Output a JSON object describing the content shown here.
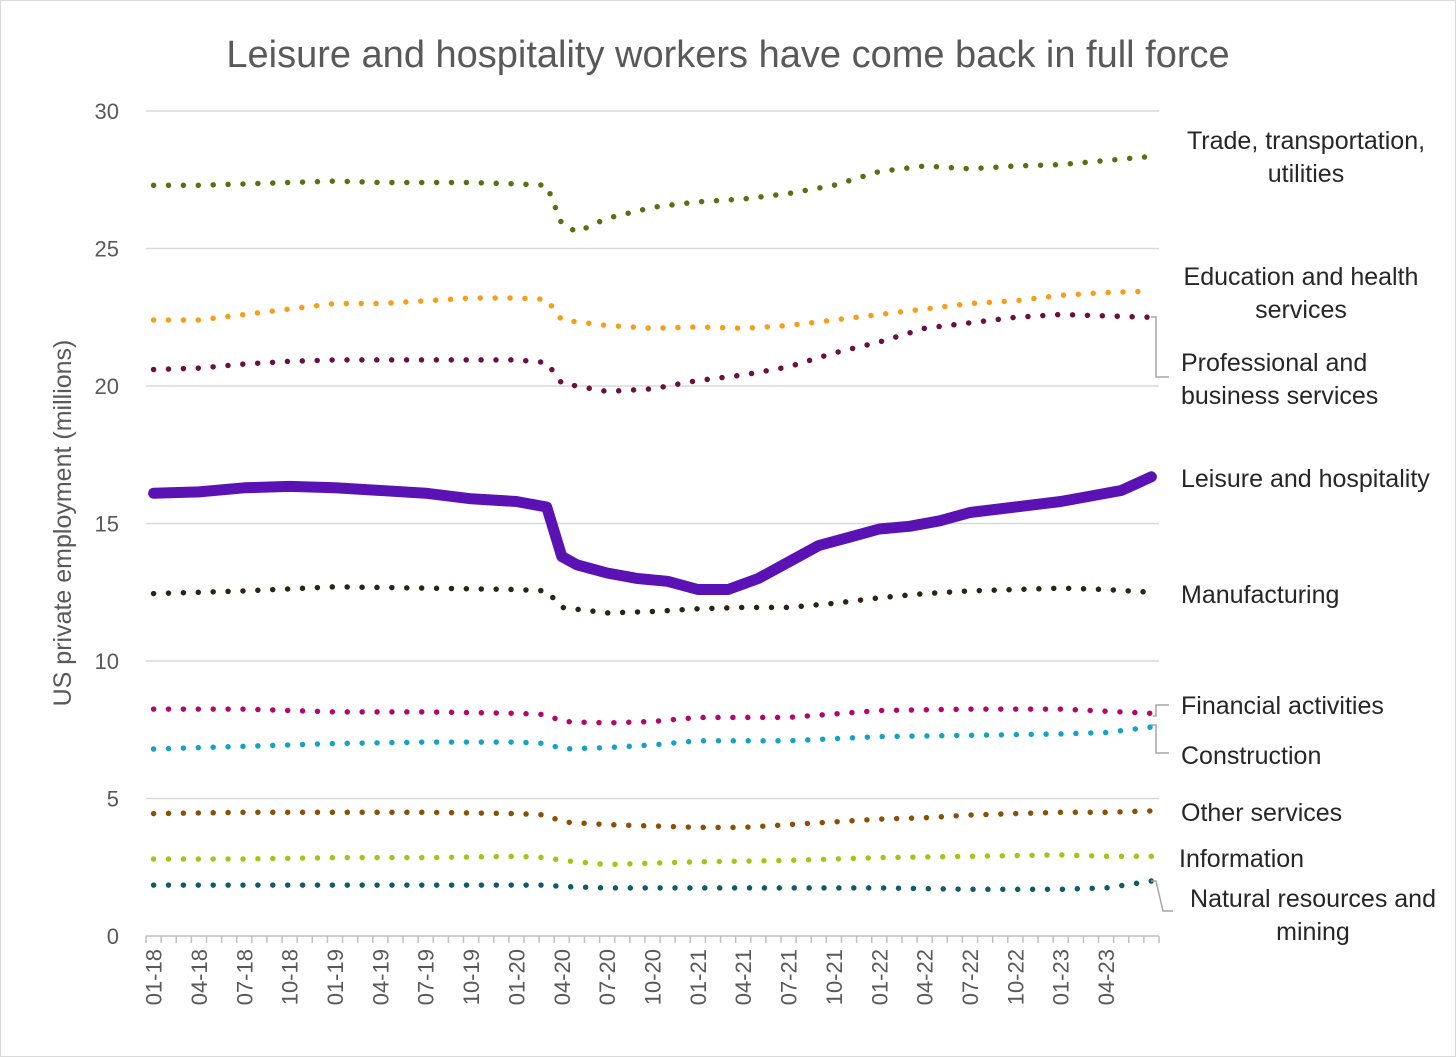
{
  "chart_data": {
    "type": "line",
    "title": "Leisure and hospitality workers have come back in full force",
    "ylabel": "US private employment (millions)",
    "xlabel": "",
    "ylim": [
      0,
      30
    ],
    "yticks": [
      0,
      5,
      10,
      15,
      20,
      25,
      30
    ],
    "grid": true,
    "legend": "direct labels at right",
    "x_start": "01-18",
    "x_ticks": [
      "01-18",
      "04-18",
      "07-18",
      "10-18",
      "01-19",
      "04-19",
      "07-19",
      "10-19",
      "01-20",
      "04-20",
      "07-20",
      "10-20",
      "01-21",
      "04-21",
      "07-21",
      "10-21",
      "01-22",
      "04-22",
      "07-22",
      "10-22",
      "01-23",
      "04-23"
    ],
    "series": [
      {
        "name": "Trade, transportation, utilities",
        "label_lines": [
          "Trade, transportation,",
          "utilities"
        ],
        "color": "#5a6e13",
        "style": "dotted",
        "points": [
          [
            0,
            27.3
          ],
          [
            3,
            27.3
          ],
          [
            6,
            27.35
          ],
          [
            9,
            27.4
          ],
          [
            12,
            27.45
          ],
          [
            15,
            27.4
          ],
          [
            18,
            27.4
          ],
          [
            21,
            27.4
          ],
          [
            24,
            27.35
          ],
          [
            26,
            27.3
          ],
          [
            27,
            25.9
          ],
          [
            28,
            25.6
          ],
          [
            30,
            26.1
          ],
          [
            33,
            26.5
          ],
          [
            36,
            26.7
          ],
          [
            39,
            26.8
          ],
          [
            42,
            27.0
          ],
          [
            45,
            27.3
          ],
          [
            48,
            27.8
          ],
          [
            51,
            28.0
          ],
          [
            54,
            27.9
          ],
          [
            57,
            28.0
          ],
          [
            60,
            28.05
          ],
          [
            63,
            28.2
          ],
          [
            66,
            28.35
          ]
        ]
      },
      {
        "name": "Education and health services",
        "label_lines": [
          "Education and health",
          "services"
        ],
        "color": "#f59e1c",
        "style": "dotted",
        "points": [
          [
            0,
            22.4
          ],
          [
            3,
            22.4
          ],
          [
            6,
            22.6
          ],
          [
            9,
            22.8
          ],
          [
            12,
            23.0
          ],
          [
            15,
            23.0
          ],
          [
            18,
            23.1
          ],
          [
            21,
            23.2
          ],
          [
            24,
            23.2
          ],
          [
            26,
            23.15
          ],
          [
            27,
            22.4
          ],
          [
            30,
            22.2
          ],
          [
            33,
            22.1
          ],
          [
            36,
            22.15
          ],
          [
            39,
            22.1
          ],
          [
            42,
            22.2
          ],
          [
            45,
            22.4
          ],
          [
            48,
            22.6
          ],
          [
            51,
            22.8
          ],
          [
            54,
            23.0
          ],
          [
            57,
            23.1
          ],
          [
            60,
            23.3
          ],
          [
            63,
            23.4
          ],
          [
            66,
            23.45
          ]
        ]
      },
      {
        "name": "Professional and business services",
        "label_lines": [
          "Professional and",
          "business services"
        ],
        "color": "#6b0f40",
        "style": "dotted",
        "points": [
          [
            0,
            20.6
          ],
          [
            3,
            20.65
          ],
          [
            6,
            20.8
          ],
          [
            9,
            20.9
          ],
          [
            12,
            20.95
          ],
          [
            15,
            20.95
          ],
          [
            18,
            20.95
          ],
          [
            21,
            20.95
          ],
          [
            24,
            20.95
          ],
          [
            26,
            20.85
          ],
          [
            27,
            20.1
          ],
          [
            30,
            19.8
          ],
          [
            33,
            19.9
          ],
          [
            36,
            20.2
          ],
          [
            39,
            20.4
          ],
          [
            42,
            20.7
          ],
          [
            45,
            21.2
          ],
          [
            48,
            21.6
          ],
          [
            51,
            22.1
          ],
          [
            54,
            22.3
          ],
          [
            57,
            22.5
          ],
          [
            60,
            22.6
          ],
          [
            63,
            22.55
          ],
          [
            66,
            22.5
          ]
        ]
      },
      {
        "name": "Leisure and hospitality",
        "label_lines": [
          "Leisure and hospitality"
        ],
        "color": "#5a12b4",
        "style": "solid",
        "points": [
          [
            0,
            16.1
          ],
          [
            3,
            16.15
          ],
          [
            6,
            16.3
          ],
          [
            9,
            16.35
          ],
          [
            12,
            16.3
          ],
          [
            15,
            16.2
          ],
          [
            18,
            16.1
          ],
          [
            21,
            15.9
          ],
          [
            24,
            15.8
          ],
          [
            26,
            15.6
          ],
          [
            27,
            13.8
          ],
          [
            28,
            13.5
          ],
          [
            30,
            13.2
          ],
          [
            32,
            13.0
          ],
          [
            34,
            12.9
          ],
          [
            36,
            12.6
          ],
          [
            38,
            12.6
          ],
          [
            40,
            13.0
          ],
          [
            42,
            13.6
          ],
          [
            44,
            14.2
          ],
          [
            46,
            14.5
          ],
          [
            48,
            14.8
          ],
          [
            50,
            14.9
          ],
          [
            52,
            15.1
          ],
          [
            54,
            15.4
          ],
          [
            57,
            15.6
          ],
          [
            60,
            15.8
          ],
          [
            62,
            16.0
          ],
          [
            64,
            16.2
          ],
          [
            66,
            16.7
          ]
        ]
      },
      {
        "name": "Manufacturing",
        "label_lines": [
          "Manufacturing"
        ],
        "color": "#2b2510",
        "style": "dotted",
        "points": [
          [
            0,
            12.45
          ],
          [
            6,
            12.55
          ],
          [
            12,
            12.7
          ],
          [
            18,
            12.65
          ],
          [
            24,
            12.6
          ],
          [
            26,
            12.55
          ],
          [
            27,
            11.95
          ],
          [
            30,
            11.75
          ],
          [
            33,
            11.8
          ],
          [
            36,
            11.9
          ],
          [
            39,
            11.95
          ],
          [
            42,
            11.95
          ],
          [
            45,
            12.1
          ],
          [
            48,
            12.3
          ],
          [
            51,
            12.45
          ],
          [
            54,
            12.55
          ],
          [
            57,
            12.6
          ],
          [
            60,
            12.65
          ],
          [
            63,
            12.6
          ],
          [
            66,
            12.5
          ]
        ]
      },
      {
        "name": "Financial activities",
        "label_lines": [
          "Financial activities"
        ],
        "color": "#b2066e",
        "style": "dotted",
        "points": [
          [
            0,
            8.25
          ],
          [
            6,
            8.25
          ],
          [
            12,
            8.15
          ],
          [
            18,
            8.15
          ],
          [
            24,
            8.1
          ],
          [
            26,
            8.05
          ],
          [
            27,
            7.8
          ],
          [
            30,
            7.75
          ],
          [
            33,
            7.8
          ],
          [
            36,
            7.95
          ],
          [
            42,
            7.95
          ],
          [
            48,
            8.2
          ],
          [
            54,
            8.25
          ],
          [
            60,
            8.25
          ],
          [
            66,
            8.1
          ]
        ]
      },
      {
        "name": "Construction",
        "label_lines": [
          "Construction"
        ],
        "color": "#16a2c4",
        "style": "dotted",
        "points": [
          [
            0,
            6.8
          ],
          [
            6,
            6.9
          ],
          [
            12,
            7.0
          ],
          [
            18,
            7.05
          ],
          [
            24,
            7.05
          ],
          [
            26,
            7.0
          ],
          [
            27,
            6.8
          ],
          [
            30,
            6.85
          ],
          [
            33,
            6.95
          ],
          [
            36,
            7.1
          ],
          [
            42,
            7.1
          ],
          [
            48,
            7.25
          ],
          [
            54,
            7.3
          ],
          [
            60,
            7.35
          ],
          [
            63,
            7.4
          ],
          [
            66,
            7.6
          ]
        ]
      },
      {
        "name": "Other services",
        "label_lines": [
          "Other services"
        ],
        "color": "#8a5008",
        "style": "dotted",
        "points": [
          [
            0,
            4.45
          ],
          [
            6,
            4.5
          ],
          [
            12,
            4.5
          ],
          [
            18,
            4.5
          ],
          [
            24,
            4.45
          ],
          [
            26,
            4.4
          ],
          [
            27,
            4.15
          ],
          [
            30,
            4.05
          ],
          [
            33,
            4.0
          ],
          [
            36,
            3.95
          ],
          [
            39,
            3.95
          ],
          [
            42,
            4.05
          ],
          [
            45,
            4.15
          ],
          [
            48,
            4.25
          ],
          [
            51,
            4.3
          ],
          [
            54,
            4.4
          ],
          [
            57,
            4.45
          ],
          [
            60,
            4.5
          ],
          [
            63,
            4.5
          ],
          [
            66,
            4.55
          ]
        ]
      },
      {
        "name": "Information",
        "label_lines": [
          "Information"
        ],
        "color": "#a9c217",
        "style": "dotted",
        "points": [
          [
            0,
            2.8
          ],
          [
            6,
            2.8
          ],
          [
            12,
            2.85
          ],
          [
            18,
            2.85
          ],
          [
            24,
            2.9
          ],
          [
            26,
            2.85
          ],
          [
            27,
            2.75
          ],
          [
            30,
            2.6
          ],
          [
            33,
            2.65
          ],
          [
            36,
            2.7
          ],
          [
            42,
            2.75
          ],
          [
            48,
            2.85
          ],
          [
            54,
            2.9
          ],
          [
            60,
            2.95
          ],
          [
            63,
            2.9
          ],
          [
            66,
            2.9
          ]
        ]
      },
      {
        "name": "Natural resources and mining",
        "label_lines": [
          "Natural resources and",
          "mining"
        ],
        "color": "#0f5b6b",
        "style": "dotted",
        "points": [
          [
            0,
            1.85
          ],
          [
            6,
            1.85
          ],
          [
            12,
            1.85
          ],
          [
            18,
            1.85
          ],
          [
            24,
            1.85
          ],
          [
            26,
            1.85
          ],
          [
            27,
            1.8
          ],
          [
            30,
            1.75
          ],
          [
            36,
            1.75
          ],
          [
            42,
            1.75
          ],
          [
            48,
            1.75
          ],
          [
            54,
            1.7
          ],
          [
            60,
            1.7
          ],
          [
            63,
            1.75
          ],
          [
            66,
            2.0
          ]
        ]
      }
    ]
  }
}
